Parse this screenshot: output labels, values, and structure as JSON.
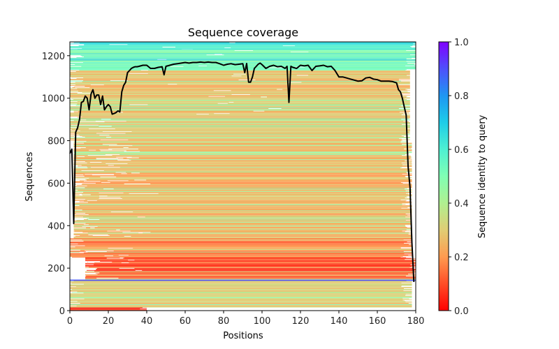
{
  "chart_data": {
    "type": "heatmap",
    "title": "Sequence coverage",
    "xlabel": "Positions",
    "ylabel": "Sequences",
    "xlim": [
      0,
      180
    ],
    "ylim": [
      0,
      1265
    ],
    "xticks": [
      "0",
      "20",
      "40",
      "60",
      "80",
      "100",
      "120",
      "140",
      "160",
      "180"
    ],
    "yticks": [
      "0",
      "200",
      "400",
      "600",
      "800",
      "1000",
      "1200"
    ],
    "colorbar": {
      "label": "Sequence identity to query",
      "range": [
        0.0,
        1.0
      ],
      "ticks": [
        "0.0",
        "0.2",
        "0.4",
        "0.6",
        "0.8",
        "1.0"
      ],
      "colormap": "rainbow_r"
    },
    "identity_bands": [
      {
        "from": 0,
        "to": 15,
        "identity": 0.05,
        "start": 0,
        "end": 40
      },
      {
        "from": 15,
        "to": 140,
        "identity": 0.3,
        "start": 0,
        "end": 178
      },
      {
        "from": 140,
        "to": 146,
        "identity": 0.95,
        "start": 0,
        "end": 180
      },
      {
        "from": 146,
        "to": 250,
        "identity": 0.1,
        "start": 8,
        "end": 180
      },
      {
        "from": 250,
        "to": 340,
        "identity": 0.17,
        "start": 0,
        "end": 178
      },
      {
        "from": 340,
        "to": 800,
        "identity": 0.25,
        "start": 2,
        "end": 178
      },
      {
        "from": 800,
        "to": 1130,
        "identity": 0.28,
        "start": 0,
        "end": 177
      },
      {
        "from": 1130,
        "to": 1230,
        "identity": 0.5,
        "start": 0,
        "end": 180
      },
      {
        "from": 1230,
        "to": 1265,
        "identity": 0.62,
        "start": 0,
        "end": 180
      }
    ],
    "coverage_line": {
      "x": [
        0,
        1,
        2,
        3,
        4,
        5,
        6,
        7,
        8,
        9,
        10,
        11,
        12,
        13,
        14,
        15,
        16,
        17,
        18,
        19,
        20,
        21,
        22,
        23,
        24,
        25,
        26,
        27,
        28,
        29,
        30,
        31,
        32,
        33,
        34,
        35,
        36,
        38,
        40,
        42,
        44,
        46,
        48,
        49,
        50,
        52,
        54,
        56,
        58,
        60,
        62,
        64,
        66,
        68,
        70,
        72,
        74,
        76,
        78,
        80,
        82,
        84,
        86,
        88,
        90,
        91,
        92,
        93,
        94,
        95,
        96,
        97,
        98,
        99,
        100,
        102,
        104,
        106,
        108,
        110,
        112,
        113,
        114,
        115,
        116,
        118,
        120,
        122,
        124,
        126,
        128,
        130,
        132,
        134,
        136,
        138,
        140,
        142,
        144,
        146,
        148,
        150,
        152,
        154,
        156,
        158,
        160,
        162,
        164,
        166,
        168,
        170,
        171,
        172,
        173,
        174,
        175,
        176,
        177,
        178,
        179
      ],
      "y": [
        740,
        760,
        410,
        840,
        860,
        900,
        980,
        985,
        1010,
        1000,
        945,
        1020,
        1040,
        1000,
        1015,
        1015,
        970,
        1010,
        945,
        960,
        970,
        960,
        925,
        928,
        932,
        940,
        935,
        1030,
        1060,
        1075,
        1120,
        1130,
        1140,
        1145,
        1148,
        1148,
        1150,
        1155,
        1155,
        1140,
        1140,
        1145,
        1148,
        1110,
        1150,
        1155,
        1160,
        1162,
        1165,
        1168,
        1165,
        1168,
        1168,
        1170,
        1168,
        1170,
        1168,
        1168,
        1162,
        1155,
        1160,
        1162,
        1158,
        1160,
        1162,
        1120,
        1163,
        1075,
        1075,
        1100,
        1140,
        1150,
        1160,
        1165,
        1158,
        1140,
        1150,
        1155,
        1148,
        1150,
        1140,
        1150,
        980,
        1150,
        1145,
        1140,
        1155,
        1152,
        1155,
        1130,
        1150,
        1152,
        1155,
        1148,
        1150,
        1130,
        1100,
        1100,
        1095,
        1090,
        1085,
        1080,
        1082,
        1095,
        1098,
        1090,
        1087,
        1080,
        1080,
        1080,
        1078,
        1072,
        1040,
        1030,
        1000,
        960,
        920,
        680,
        580,
        320,
        135
      ]
    }
  }
}
